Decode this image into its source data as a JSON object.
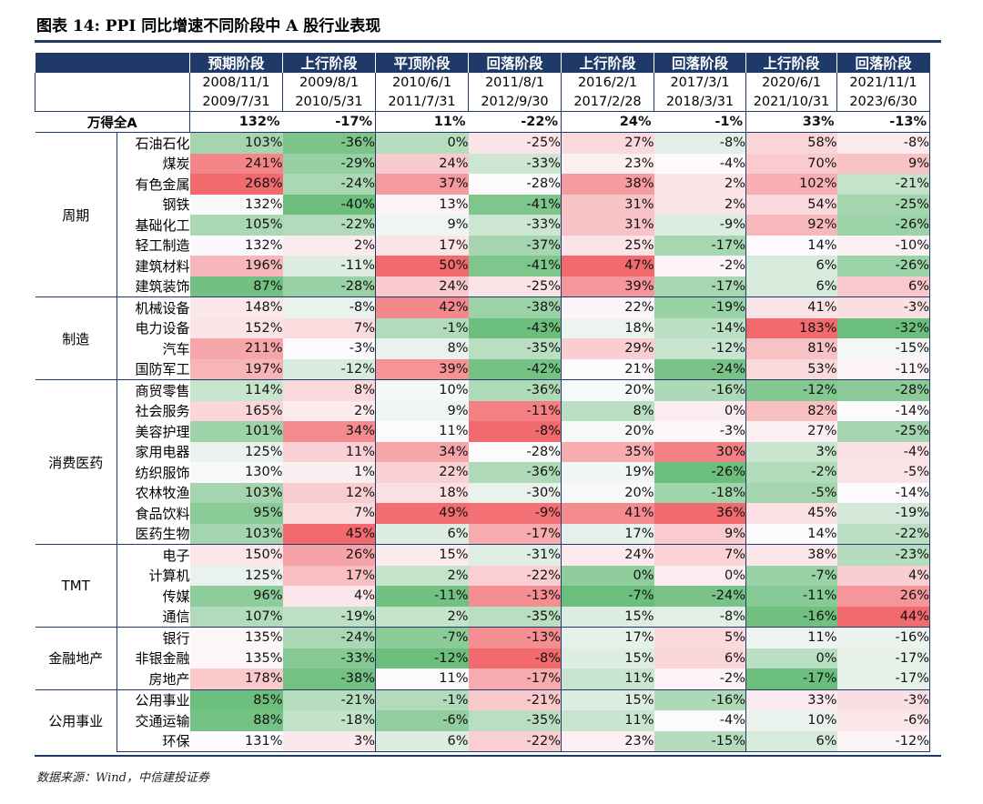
{
  "figure": {
    "title": "图表 14: PPI 同比增速不同阶段中 A 股行业表现",
    "source": "数据来源：Wind，中信建投证券"
  },
  "table": {
    "stages": [
      {
        "label": "预期阶段",
        "start": "2008/11/1",
        "end": "2009/7/31"
      },
      {
        "label": "上行阶段",
        "start": "2009/8/1",
        "end": "2010/5/31"
      },
      {
        "label": "平顶阶段",
        "start": "2010/6/1",
        "end": "2011/7/31"
      },
      {
        "label": "回落阶段",
        "start": "2011/8/1",
        "end": "2012/9/30"
      },
      {
        "label": "上行阶段",
        "start": "2016/2/1",
        "end": "2017/2/28"
      },
      {
        "label": "回落阶段",
        "start": "2017/3/1",
        "end": "2018/3/31"
      },
      {
        "label": "上行阶段",
        "start": "2020/6/1",
        "end": "2021/10/31"
      },
      {
        "label": "回落阶段",
        "start": "2021/11/1",
        "end": "2023/6/30"
      }
    ],
    "total": {
      "label": "万得全A",
      "values": [
        "132%",
        "-17%",
        "11%",
        "-22%",
        "24%",
        "-1%",
        "33%",
        "-13%"
      ]
    },
    "groups": [
      {
        "name": "周期",
        "rows": [
          {
            "industry": "石油石化",
            "values": [
              "103%",
              "-36%",
              "0%",
              "-25%",
              "27%",
              "-8%",
              "58%",
              "-8%"
            ]
          },
          {
            "industry": "煤炭",
            "values": [
              "241%",
              "-29%",
              "24%",
              "-33%",
              "23%",
              "-4%",
              "70%",
              "9%"
            ]
          },
          {
            "industry": "有色金属",
            "values": [
              "268%",
              "-24%",
              "37%",
              "-28%",
              "38%",
              "2%",
              "102%",
              "-21%"
            ]
          },
          {
            "industry": "钢铁",
            "values": [
              "132%",
              "-40%",
              "13%",
              "-41%",
              "31%",
              "2%",
              "54%",
              "-25%"
            ]
          },
          {
            "industry": "基础化工",
            "values": [
              "105%",
              "-22%",
              "9%",
              "-33%",
              "31%",
              "-9%",
              "92%",
              "-26%"
            ]
          },
          {
            "industry": "轻工制造",
            "values": [
              "132%",
              "2%",
              "17%",
              "-37%",
              "25%",
              "-17%",
              "14%",
              "-10%"
            ]
          },
          {
            "industry": "建筑材料",
            "values": [
              "196%",
              "-11%",
              "50%",
              "-41%",
              "47%",
              "-2%",
              "6%",
              "-26%"
            ]
          },
          {
            "industry": "建筑装饰",
            "values": [
              "87%",
              "-28%",
              "24%",
              "-25%",
              "39%",
              "-17%",
              "6%",
              "6%"
            ]
          }
        ]
      },
      {
        "name": "制造",
        "rows": [
          {
            "industry": "机械设备",
            "values": [
              "148%",
              "-8%",
              "42%",
              "-38%",
              "22%",
              "-19%",
              "41%",
              "-3%"
            ]
          },
          {
            "industry": "电力设备",
            "values": [
              "152%",
              "7%",
              "-1%",
              "-43%",
              "18%",
              "-14%",
              "183%",
              "-32%"
            ]
          },
          {
            "industry": "汽车",
            "values": [
              "211%",
              "-3%",
              "8%",
              "-35%",
              "29%",
              "-12%",
              "81%",
              "-15%"
            ]
          },
          {
            "industry": "国防军工",
            "values": [
              "197%",
              "-12%",
              "39%",
              "-42%",
              "21%",
              "-24%",
              "53%",
              "-11%"
            ]
          }
        ]
      },
      {
        "name": "消费医药",
        "rows": [
          {
            "industry": "商贸零售",
            "values": [
              "114%",
              "8%",
              "10%",
              "-36%",
              "20%",
              "-16%",
              "-12%",
              "-28%"
            ]
          },
          {
            "industry": "社会服务",
            "values": [
              "165%",
              "2%",
              "9%",
              "-11%",
              "8%",
              "0%",
              "82%",
              "-14%"
            ]
          },
          {
            "industry": "美容护理",
            "values": [
              "101%",
              "34%",
              "11%",
              "-8%",
              "20%",
              "-3%",
              "27%",
              "-25%"
            ]
          },
          {
            "industry": "家用电器",
            "values": [
              "125%",
              "11%",
              "34%",
              "-28%",
              "35%",
              "30%",
              "3%",
              "-4%"
            ]
          },
          {
            "industry": "纺织服饰",
            "values": [
              "130%",
              "1%",
              "22%",
              "-36%",
              "19%",
              "-26%",
              "-2%",
              "-5%"
            ]
          },
          {
            "industry": "农林牧渔",
            "values": [
              "103%",
              "12%",
              "18%",
              "-30%",
              "20%",
              "-18%",
              "-5%",
              "-14%"
            ]
          },
          {
            "industry": "食品饮料",
            "values": [
              "95%",
              "7%",
              "49%",
              "-9%",
              "41%",
              "36%",
              "45%",
              "-19%"
            ]
          },
          {
            "industry": "医药生物",
            "values": [
              "103%",
              "45%",
              "6%",
              "-17%",
              "17%",
              "9%",
              "14%",
              "-22%"
            ]
          }
        ]
      },
      {
        "name": "TMT",
        "rows": [
          {
            "industry": "电子",
            "values": [
              "150%",
              "26%",
              "15%",
              "-31%",
              "24%",
              "7%",
              "38%",
              "-23%"
            ]
          },
          {
            "industry": "计算机",
            "values": [
              "125%",
              "17%",
              "2%",
              "-22%",
              "0%",
              "0%",
              "-7%",
              "4%"
            ]
          },
          {
            "industry": "传媒",
            "values": [
              "96%",
              "4%",
              "-11%",
              "-13%",
              "-7%",
              "-24%",
              "-11%",
              "26%"
            ]
          },
          {
            "industry": "通信",
            "values": [
              "107%",
              "-19%",
              "2%",
              "-35%",
              "15%",
              "-8%",
              "-16%",
              "44%"
            ]
          }
        ]
      },
      {
        "name": "金融地产",
        "rows": [
          {
            "industry": "银行",
            "values": [
              "135%",
              "-24%",
              "-7%",
              "-13%",
              "17%",
              "5%",
              "11%",
              "-16%"
            ]
          },
          {
            "industry": "非银金融",
            "values": [
              "135%",
              "-33%",
              "-12%",
              "-8%",
              "15%",
              "6%",
              "0%",
              "-17%"
            ]
          },
          {
            "industry": "房地产",
            "values": [
              "178%",
              "-38%",
              "11%",
              "-17%",
              "11%",
              "-2%",
              "-17%",
              "-17%"
            ]
          }
        ]
      },
      {
        "name": "公用事业",
        "rows": [
          {
            "industry": "公用事业",
            "values": [
              "85%",
              "-21%",
              "-1%",
              "-21%",
              "15%",
              "-16%",
              "33%",
              "-3%"
            ]
          },
          {
            "industry": "交通运输",
            "values": [
              "88%",
              "-18%",
              "-6%",
              "-35%",
              "11%",
              "-4%",
              "10%",
              "-6%"
            ]
          },
          {
            "industry": "环保",
            "values": [
              "131%",
              "3%",
              "6%",
              "-22%",
              "23%",
              "-15%",
              "6%",
              "-12%"
            ]
          }
        ]
      }
    ]
  }
}
